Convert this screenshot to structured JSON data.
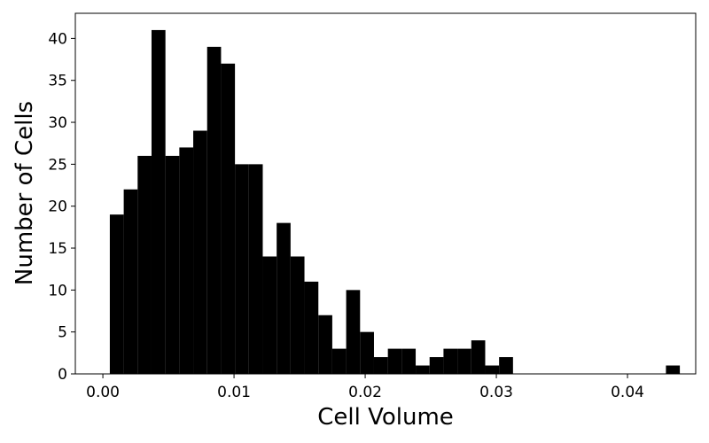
{
  "chart_data": {
    "type": "bar",
    "title": "",
    "xlabel": "Cell Volume",
    "ylabel": "Number of Cells",
    "xlim": [
      -0.0021,
      0.0452
    ],
    "ylim": [
      0,
      43
    ],
    "xticks": [
      0.0,
      0.01,
      0.02,
      0.03,
      0.04
    ],
    "xtick_labels": [
      "0.00",
      "0.01",
      "0.02",
      "0.03",
      "0.04"
    ],
    "yticks": [
      0,
      5,
      10,
      15,
      20,
      25,
      30,
      35,
      40
    ],
    "ytick_labels": [
      "0",
      "5",
      "10",
      "15",
      "20",
      "25",
      "30",
      "35",
      "40"
    ],
    "bar_color": "#000000",
    "grid": false,
    "legend": "none",
    "bin_start": 0.00053,
    "bin_width": 0.00106,
    "values": [
      19,
      22,
      26,
      41,
      26,
      27,
      29,
      39,
      37,
      25,
      25,
      14,
      18,
      14,
      11,
      7,
      3,
      10,
      5,
      2,
      3,
      3,
      1,
      2,
      3,
      3,
      4,
      1,
      2,
      0,
      0,
      0,
      0,
      0,
      0,
      0,
      0,
      0,
      0,
      0,
      1
    ]
  }
}
